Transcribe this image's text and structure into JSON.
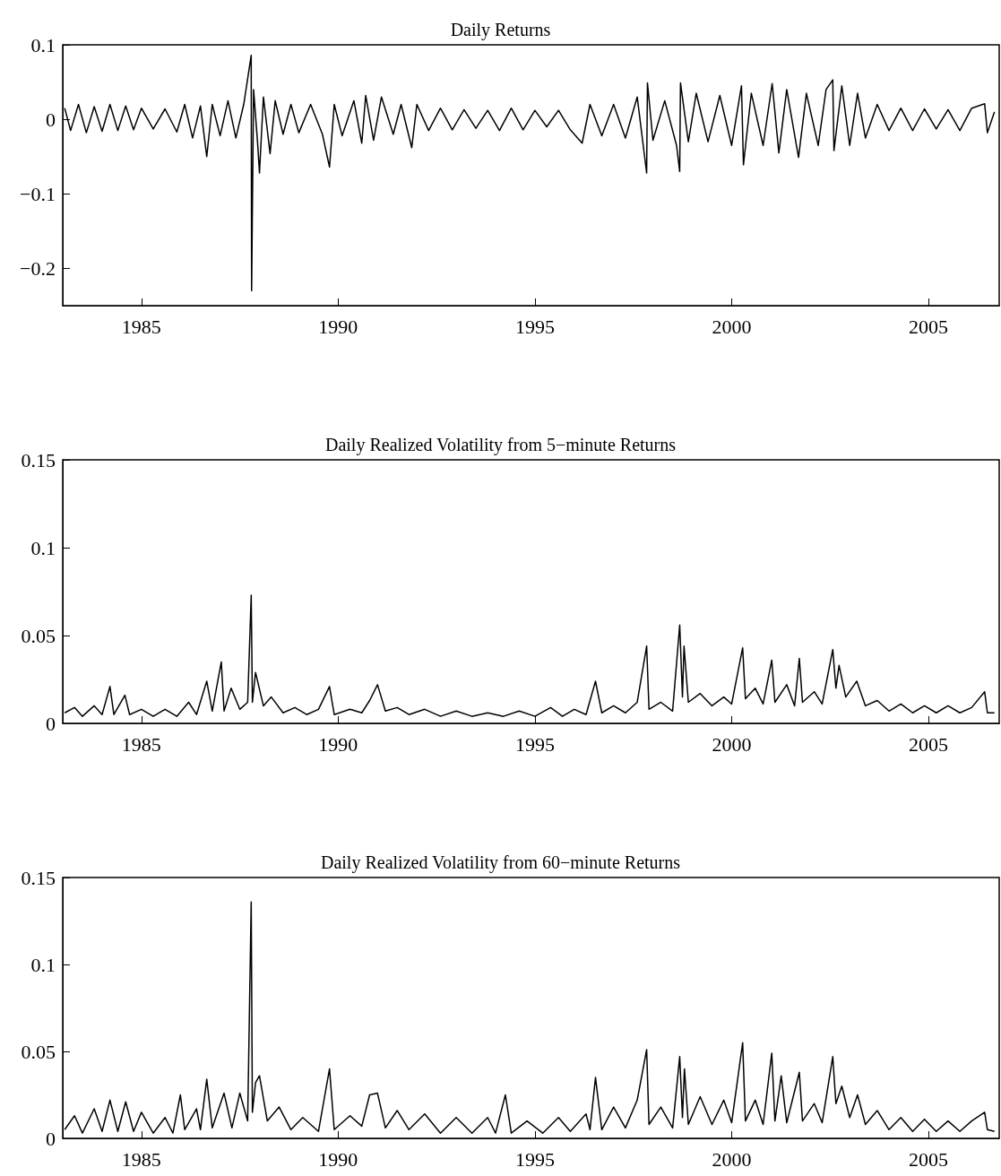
{
  "chart_data": [
    {
      "type": "line",
      "title": "Daily Returns",
      "xlim": [
        1983,
        2006.8
      ],
      "xticks": [
        1985,
        1990,
        1995,
        2000,
        2005
      ],
      "ylim": [
        -0.25,
        0.1
      ],
      "yticks": [
        {
          "value": -0.2,
          "label": "−0.2"
        },
        {
          "value": -0.1,
          "label": "−0.1"
        },
        0,
        0.1
      ],
      "x": [
        1983.05,
        1983.2,
        1983.4,
        1983.6,
        1983.8,
        1984.0,
        1984.2,
        1984.4,
        1984.6,
        1984.8,
        1985.0,
        1985.3,
        1985.6,
        1985.9,
        1986.1,
        1986.3,
        1986.5,
        1986.66,
        1986.8,
        1987.0,
        1987.2,
        1987.4,
        1987.6,
        1987.79,
        1987.8,
        1987.85,
        1987.95,
        1988.0,
        1988.1,
        1988.27,
        1988.4,
        1988.6,
        1988.8,
        1989.0,
        1989.3,
        1989.6,
        1989.78,
        1989.9,
        1990.1,
        1990.4,
        1990.6,
        1990.7,
        1990.9,
        1991.1,
        1991.4,
        1991.6,
        1991.87,
        1992.0,
        1992.3,
        1992.6,
        1992.9,
        1993.2,
        1993.5,
        1993.8,
        1994.1,
        1994.4,
        1994.7,
        1995.0,
        1995.3,
        1995.6,
        1995.9,
        1996.2,
        1996.4,
        1996.7,
        1997.0,
        1997.3,
        1997.6,
        1997.84,
        1997.86,
        1998.0,
        1998.3,
        1998.6,
        1998.68,
        1998.7,
        1998.9,
        1999.1,
        1999.4,
        1999.7,
        2000.0,
        2000.25,
        2000.3,
        2000.5,
        2000.8,
        2001.03,
        2001.2,
        2001.4,
        2001.7,
        2001.9,
        2002.2,
        2002.4,
        2002.57,
        2002.6,
        2002.8,
        2003.0,
        2003.2,
        2003.4,
        2003.7,
        2004.0,
        2004.3,
        2004.6,
        2004.9,
        2005.2,
        2005.5,
        2005.8,
        2006.1,
        2006.43,
        2006.5,
        2006.68
      ],
      "series": [
        {
          "color": "#000000",
          "values": [
            0.015,
            -0.015,
            0.02,
            -0.018,
            0.017,
            -0.016,
            0.02,
            -0.015,
            0.018,
            -0.014,
            0.015,
            -0.013,
            0.014,
            -0.017,
            0.02,
            -0.025,
            0.018,
            -0.05,
            0.02,
            -0.022,
            0.025,
            -0.025,
            0.02,
            0.086,
            -0.23,
            0.04,
            -0.03,
            -0.072,
            0.03,
            -0.046,
            0.025,
            -0.02,
            0.02,
            -0.018,
            0.02,
            -0.02,
            -0.064,
            0.02,
            -0.022,
            0.025,
            -0.032,
            0.032,
            -0.028,
            0.03,
            -0.02,
            0.02,
            -0.038,
            0.02,
            -0.015,
            0.015,
            -0.014,
            0.013,
            -0.012,
            0.012,
            -0.015,
            0.015,
            -0.014,
            0.012,
            -0.01,
            0.012,
            -0.014,
            -0.032,
            0.02,
            -0.022,
            0.02,
            -0.025,
            0.03,
            -0.072,
            0.049,
            -0.028,
            0.025,
            -0.035,
            -0.07,
            0.049,
            -0.03,
            0.035,
            -0.03,
            0.032,
            -0.035,
            0.045,
            -0.061,
            0.035,
            -0.035,
            0.048,
            -0.045,
            0.04,
            -0.051,
            0.035,
            -0.035,
            0.04,
            0.053,
            -0.042,
            0.045,
            -0.035,
            0.035,
            -0.025,
            0.02,
            -0.015,
            0.015,
            -0.015,
            0.014,
            -0.013,
            0.013,
            -0.015,
            0.015,
            0.021,
            -0.018,
            0.01
          ]
        }
      ]
    },
    {
      "type": "line",
      "title": "Daily Realized Volatility from 5−minute Returns",
      "xlim": [
        1983,
        2006.8
      ],
      "xticks": [
        1985,
        1990,
        1995,
        2000,
        2005
      ],
      "ylim": [
        0,
        0.15
      ],
      "yticks": [
        0,
        0.05,
        0.1,
        0.15
      ],
      "x": [
        1983.05,
        1983.3,
        1983.5,
        1983.8,
        1984.0,
        1984.2,
        1984.3,
        1984.58,
        1984.7,
        1985.0,
        1985.3,
        1985.6,
        1985.9,
        1986.2,
        1986.4,
        1986.66,
        1986.8,
        1987.03,
        1987.1,
        1987.28,
        1987.5,
        1987.7,
        1987.79,
        1987.82,
        1987.9,
        1988.1,
        1988.3,
        1988.6,
        1988.9,
        1989.2,
        1989.5,
        1989.78,
        1989.9,
        1990.3,
        1990.6,
        1990.8,
        1991.0,
        1991.2,
        1991.5,
        1991.8,
        1992.2,
        1992.6,
        1993.0,
        1993.4,
        1993.8,
        1994.2,
        1994.6,
        1995.0,
        1995.4,
        1995.7,
        1996.0,
        1996.3,
        1996.54,
        1996.7,
        1997.0,
        1997.3,
        1997.6,
        1997.84,
        1997.9,
        1998.2,
        1998.5,
        1998.68,
        1998.75,
        1998.79,
        1998.9,
        1999.2,
        1999.5,
        1999.8,
        2000.0,
        2000.28,
        2000.35,
        2000.6,
        2000.8,
        2001.02,
        2001.1,
        2001.4,
        2001.6,
        2001.72,
        2001.8,
        2002.1,
        2002.3,
        2002.57,
        2002.65,
        2002.73,
        2002.9,
        2003.18,
        2003.4,
        2003.7,
        2004.0,
        2004.3,
        2004.6,
        2004.9,
        2005.2,
        2005.5,
        2005.8,
        2006.1,
        2006.43,
        2006.5,
        2006.68
      ],
      "series": [
        {
          "color": "#000000",
          "values": [
            0.006,
            0.009,
            0.004,
            0.01,
            0.005,
            0.021,
            0.005,
            0.016,
            0.005,
            0.008,
            0.004,
            0.008,
            0.004,
            0.012,
            0.005,
            0.024,
            0.007,
            0.035,
            0.007,
            0.02,
            0.008,
            0.012,
            0.073,
            0.012,
            0.029,
            0.01,
            0.015,
            0.006,
            0.009,
            0.005,
            0.008,
            0.021,
            0.005,
            0.008,
            0.006,
            0.013,
            0.022,
            0.007,
            0.009,
            0.005,
            0.008,
            0.004,
            0.007,
            0.004,
            0.006,
            0.004,
            0.007,
            0.004,
            0.009,
            0.004,
            0.008,
            0.005,
            0.024,
            0.006,
            0.01,
            0.006,
            0.012,
            0.044,
            0.008,
            0.012,
            0.007,
            0.056,
            0.015,
            0.044,
            0.012,
            0.017,
            0.01,
            0.015,
            0.011,
            0.043,
            0.014,
            0.02,
            0.011,
            0.036,
            0.012,
            0.022,
            0.01,
            0.037,
            0.012,
            0.018,
            0.011,
            0.042,
            0.02,
            0.033,
            0.015,
            0.024,
            0.01,
            0.013,
            0.007,
            0.011,
            0.006,
            0.01,
            0.006,
            0.01,
            0.006,
            0.009,
            0.018,
            0.006,
            0.006
          ]
        }
      ]
    },
    {
      "type": "line",
      "title": "Daily Realized Volatility from 60−minute Returns",
      "xlim": [
        1983,
        2006.8
      ],
      "xticks": [
        1985,
        1990,
        1995,
        2000,
        2005
      ],
      "ylim": [
        0,
        0.15
      ],
      "yticks": [
        0,
        0.05,
        0.1,
        0.15
      ],
      "x": [
        1983.05,
        1983.3,
        1983.5,
        1983.8,
        1984.0,
        1984.2,
        1984.4,
        1984.6,
        1984.8,
        1985.0,
        1985.3,
        1985.6,
        1985.8,
        1985.99,
        1986.1,
        1986.4,
        1986.5,
        1986.66,
        1986.8,
        1987.1,
        1987.3,
        1987.5,
        1987.7,
        1987.79,
        1987.82,
        1987.9,
        1988.0,
        1988.2,
        1988.5,
        1988.8,
        1989.1,
        1989.5,
        1989.78,
        1989.9,
        1990.3,
        1990.6,
        1990.8,
        1991.0,
        1991.2,
        1991.5,
        1991.8,
        1992.2,
        1992.6,
        1993.0,
        1993.4,
        1993.8,
        1994.0,
        1994.25,
        1994.4,
        1994.8,
        1995.2,
        1995.6,
        1995.9,
        1996.3,
        1996.4,
        1996.54,
        1996.7,
        1997.0,
        1997.3,
        1997.6,
        1997.84,
        1997.9,
        1998.2,
        1998.5,
        1998.68,
        1998.75,
        1998.8,
        1998.9,
        1999.2,
        1999.5,
        1999.8,
        2000.0,
        2000.28,
        2000.35,
        2000.6,
        2000.8,
        2001.02,
        2001.1,
        2001.26,
        2001.4,
        2001.72,
        2001.8,
        2002.1,
        2002.3,
        2002.57,
        2002.65,
        2002.8,
        2003.0,
        2003.2,
        2003.4,
        2003.7,
        2004.0,
        2004.3,
        2004.6,
        2004.9,
        2005.2,
        2005.5,
        2005.8,
        2006.1,
        2006.43,
        2006.5,
        2006.68
      ],
      "series": [
        {
          "color": "#000000",
          "values": [
            0.005,
            0.013,
            0.003,
            0.017,
            0.004,
            0.022,
            0.004,
            0.021,
            0.004,
            0.015,
            0.003,
            0.012,
            0.003,
            0.025,
            0.005,
            0.017,
            0.005,
            0.034,
            0.006,
            0.026,
            0.006,
            0.026,
            0.01,
            0.136,
            0.015,
            0.032,
            0.036,
            0.01,
            0.018,
            0.005,
            0.012,
            0.004,
            0.04,
            0.005,
            0.013,
            0.007,
            0.025,
            0.026,
            0.006,
            0.016,
            0.005,
            0.014,
            0.003,
            0.012,
            0.003,
            0.012,
            0.003,
            0.025,
            0.003,
            0.01,
            0.003,
            0.012,
            0.004,
            0.014,
            0.005,
            0.035,
            0.005,
            0.018,
            0.006,
            0.022,
            0.051,
            0.008,
            0.018,
            0.006,
            0.047,
            0.012,
            0.04,
            0.008,
            0.024,
            0.008,
            0.022,
            0.009,
            0.055,
            0.01,
            0.022,
            0.008,
            0.049,
            0.01,
            0.036,
            0.009,
            0.038,
            0.01,
            0.02,
            0.009,
            0.047,
            0.02,
            0.03,
            0.012,
            0.025,
            0.008,
            0.016,
            0.005,
            0.012,
            0.004,
            0.011,
            0.004,
            0.01,
            0.004,
            0.01,
            0.015,
            0.005,
            0.004
          ]
        }
      ]
    }
  ]
}
